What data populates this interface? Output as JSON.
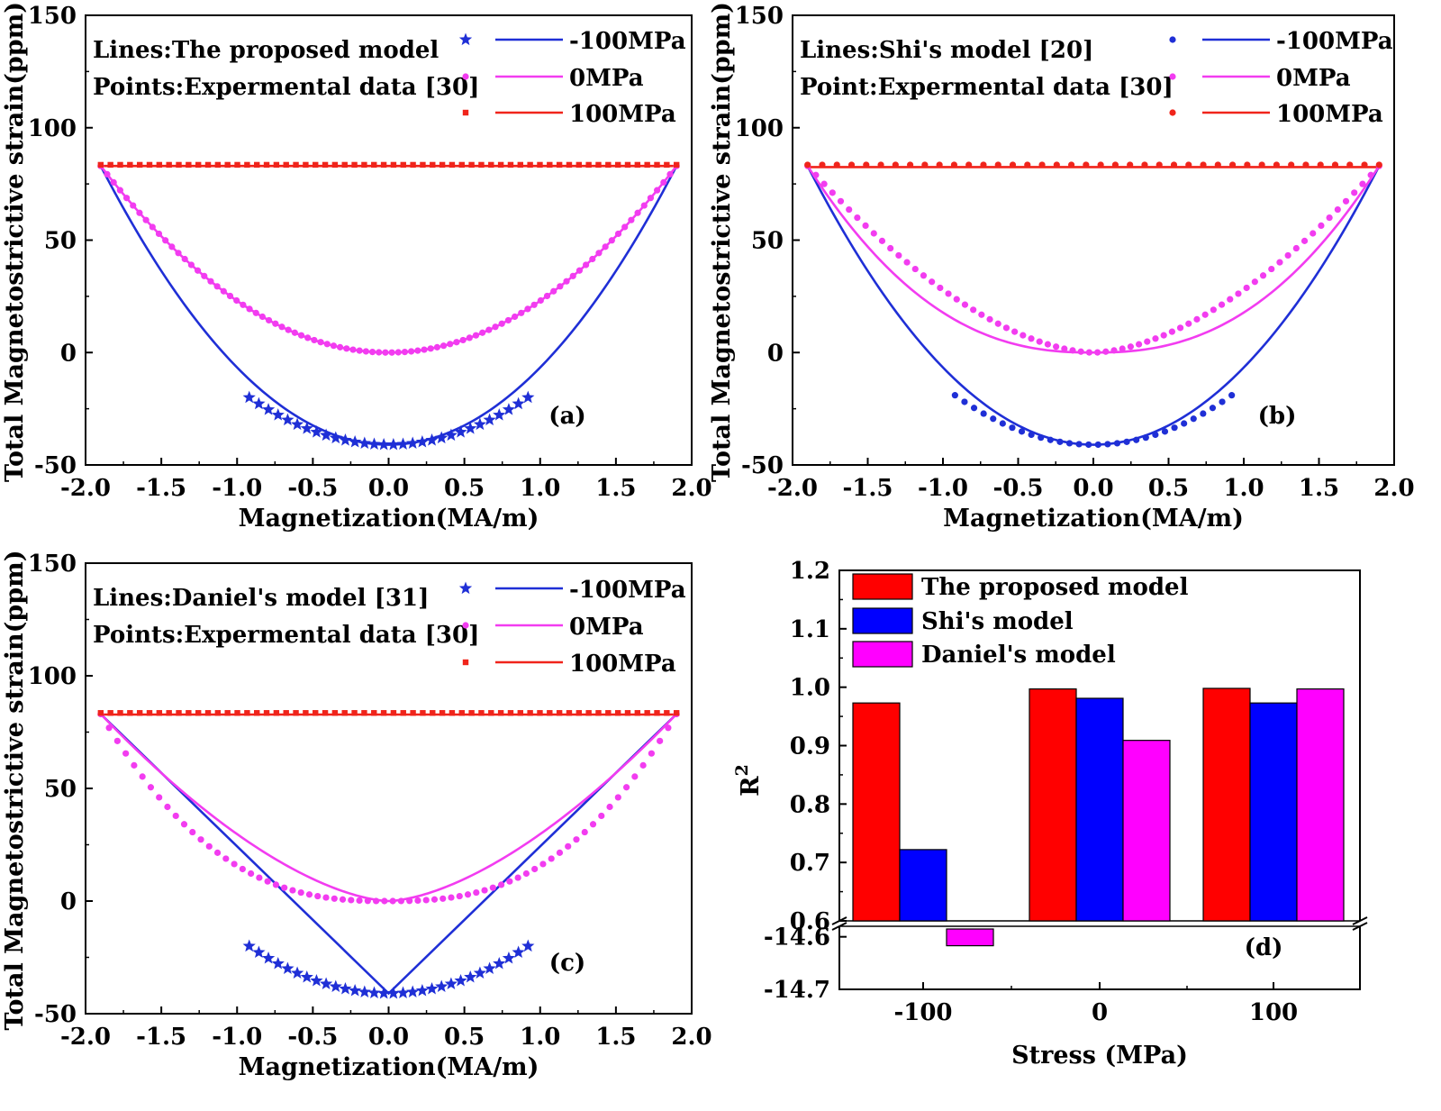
{
  "chart_data": [
    {
      "panel": "(a)",
      "type": "line",
      "xlabel": "Magnetization(MA/m)",
      "ylabel": "Total Magnetostrictive strain(ppm)",
      "xlim": [
        -2.0,
        1.9
      ],
      "ylim": [
        -50,
        150
      ],
      "xticks": [
        "-2.0",
        "-1.5",
        "-1.0",
        "-0.5",
        "0.0",
        "0.5",
        "1.0",
        "1.5",
        "2.0"
      ],
      "yticks": [
        "-50",
        "0",
        "50",
        "100",
        "150"
      ],
      "notes": [
        "Lines:The proposed model",
        "Points:Expermental data [30]"
      ],
      "legend": [
        "-100MPa",
        "0MPa",
        "100MPa"
      ],
      "colors": {
        "neg100": "#1f2fd6",
        "zero": "#f23cf0",
        "pos100": "#f0241b"
      },
      "series": [
        {
          "name": "-100MPa",
          "kind": "line",
          "model": "parab",
          "xmax": 1.9,
          "ymin": -41,
          "yend": 83
        },
        {
          "name": "0MPa",
          "kind": "line",
          "model": "parab",
          "xmax": 1.9,
          "ymin": 0,
          "yend": 83
        },
        {
          "name": "100MPa",
          "kind": "line",
          "model": "flat",
          "xmax": 1.9,
          "y": 83
        },
        {
          "name": "-100MPa",
          "kind": "points",
          "marker": "star",
          "model": "parab",
          "xmax": 0.92,
          "ymin": -41,
          "yend": -20,
          "n": 30
        },
        {
          "name": "0MPa",
          "kind": "points",
          "marker": "circle",
          "model": "parab",
          "xmax": 1.9,
          "ymin": 0,
          "yend": 83,
          "n": 90
        },
        {
          "name": "100MPa",
          "kind": "points",
          "marker": "square",
          "model": "flat",
          "xmax": 1.9,
          "y": 83.5,
          "n": 60
        }
      ]
    },
    {
      "panel": "(b)",
      "type": "line",
      "xlabel": "Magnetization(MA/m)",
      "ylabel": "Total Magnetostrictive strain(ppm)",
      "xlim": [
        -2.0,
        1.9
      ],
      "ylim": [
        -50,
        150
      ],
      "xticks": [
        "-2.0",
        "-1.5",
        "-1.0",
        "-0.5",
        "0.0",
        "0.5",
        "1.0",
        "1.5",
        "2.0"
      ],
      "yticks": [
        "-50",
        "0",
        "50",
        "100",
        "150"
      ],
      "notes": [
        "Lines:Shi's model [20]",
        "Point:Expermental data [30]"
      ],
      "legend": [
        "-100MPa",
        "0MPa",
        "100MPa"
      ],
      "colors": {
        "neg100": "#1f2fd6",
        "zero": "#f23cf0",
        "pos100": "#f0241b"
      },
      "series": [
        {
          "name": "-100MPa",
          "kind": "line",
          "model": "parab",
          "xmax": 1.9,
          "ymin": -41,
          "yend": 83
        },
        {
          "name": "0MPa",
          "kind": "line",
          "model": "parab",
          "xmax": 1.9,
          "ymin": 0,
          "yend": 83,
          "power": 2.4
        },
        {
          "name": "100MPa",
          "kind": "line",
          "model": "flat",
          "xmax": 1.9,
          "y": 82.5
        },
        {
          "name": "-100MPa",
          "kind": "points",
          "marker": "circle",
          "model": "parab",
          "xmax": 0.92,
          "ymin": -41,
          "yend": -19,
          "n": 30
        },
        {
          "name": "0MPa",
          "kind": "points",
          "marker": "circle",
          "model": "parab",
          "xmax": 1.9,
          "ymin": 0,
          "yend": 83,
          "n": 70,
          "power": 1.7
        },
        {
          "name": "100MPa",
          "kind": "points",
          "marker": "circle",
          "model": "flat",
          "xmax": 1.9,
          "y": 83.5,
          "n": 40
        }
      ]
    },
    {
      "panel": "(c)",
      "type": "line",
      "xlabel": "Magnetization(MA/m)",
      "ylabel": "Total Magnetostrictive strain(ppm)",
      "xlim": [
        -2.0,
        1.9
      ],
      "ylim": [
        -50,
        150
      ],
      "xticks": [
        "-2.0",
        "-1.5",
        "-1.0",
        "-0.5",
        "0.0",
        "0.5",
        "1.0",
        "1.5",
        "2.0"
      ],
      "yticks": [
        "-50",
        "0",
        "50",
        "100",
        "150"
      ],
      "notes": [
        "Lines:Daniel's model [31]",
        "Points:Expermental data [30]"
      ],
      "legend": [
        "-100MPa",
        "0MPa",
        "100MPa"
      ],
      "colors": {
        "neg100": "#1f2fd6",
        "zero": "#f23cf0",
        "pos100": "#f0241b"
      },
      "series": [
        {
          "name": "-100MPa",
          "kind": "line",
          "model": "vee",
          "xmax": 1.9,
          "ymin": -41,
          "yend": 83
        },
        {
          "name": "0MPa",
          "kind": "line",
          "model": "parab",
          "xmax": 1.9,
          "ymin": 0,
          "yend": 83,
          "power": 1.6
        },
        {
          "name": "100MPa",
          "kind": "line",
          "model": "flat",
          "xmax": 1.9,
          "y": 82.8
        },
        {
          "name": "-100MPa",
          "kind": "points",
          "marker": "star",
          "model": "parab",
          "xmax": 0.92,
          "ymin": -41,
          "yend": -20,
          "n": 30
        },
        {
          "name": "0MPa",
          "kind": "points",
          "marker": "circle",
          "model": "parab",
          "xmax": 1.9,
          "ymin": 0,
          "yend": 83,
          "n": 70,
          "power": 2.6
        },
        {
          "name": "100MPa",
          "kind": "points",
          "marker": "square",
          "model": "flat",
          "xmax": 1.9,
          "y": 83.5,
          "n": 60
        }
      ]
    },
    {
      "panel": "(d)",
      "type": "bar",
      "xlabel": "Stress (MPa)",
      "ylabel": "R",
      "ylabel_sup": "2",
      "categories": [
        "-100",
        "0",
        "100"
      ],
      "ylim_upper": [
        0.6,
        1.2
      ],
      "ylim_lower": [
        -14.7,
        -14.58
      ],
      "yticks_upper": [
        "0.6",
        "0.7",
        "0.8",
        "0.9",
        "1.0",
        "1.1",
        "1.2"
      ],
      "yticks_lower": [
        "-14.6",
        "-14.7"
      ],
      "series": [
        {
          "name": "The proposed model",
          "color": "#ff0000",
          "values": [
            0.973,
            0.997,
            0.998
          ]
        },
        {
          "name": "Shi's model",
          "color": "#0000ff",
          "values": [
            0.722,
            0.981,
            0.973
          ]
        },
        {
          "name": "Daniel's model",
          "color": "#ff00ff",
          "values": [
            -14.617,
            0.909,
            0.997
          ]
        }
      ]
    }
  ]
}
